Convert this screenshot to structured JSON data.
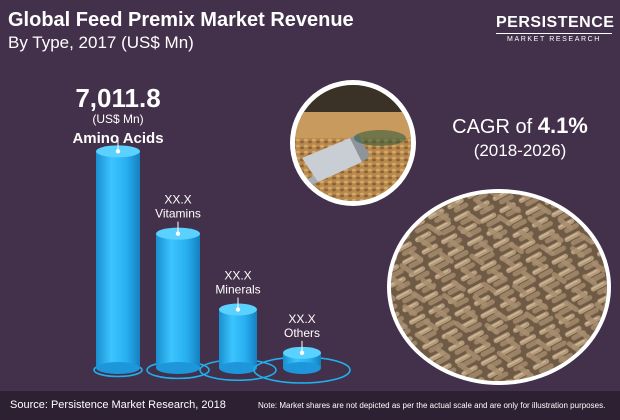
{
  "header": {
    "title": "Global Feed Premix Market Revenue",
    "subtitle": "By Type, 2017 (US$ Mn)"
  },
  "logo": {
    "main": "PERSISTENCE",
    "sub": "MARKET RESEARCH"
  },
  "cagr": {
    "prefix": "CAGR of",
    "value": "4.1%",
    "period": "(2018-2026)"
  },
  "footer": {
    "source": "Source: Persistence Market Research, 2018",
    "note": "Note: Market shares are not depicted as per the actual scale and are only for illustration purposes."
  },
  "colors": {
    "background": "#43304a",
    "cylinder": "#1fb0ee",
    "cylinder_top": "#5ad1ff",
    "ring": "#1fb0ee",
    "footer": "#2d2032"
  },
  "chart_data": {
    "type": "bar",
    "title": "Global Feed Premix Market Revenue",
    "subtitle": "By Type, 2017 (US$ Mn)",
    "categories": [
      "Amino Acids",
      "Vitamins",
      "Minerals",
      "Others"
    ],
    "series": [
      {
        "values": [
          7011.8,
          null,
          null,
          null
        ],
        "labels": [
          "7,011.8",
          "XX.X",
          "XX.X",
          "XX.X"
        ]
      }
    ],
    "unit_label": "(US$ Mn)",
    "relative_heights": [
      1.0,
      0.62,
      0.27,
      0.07
    ],
    "grid": false,
    "legend": "none"
  }
}
